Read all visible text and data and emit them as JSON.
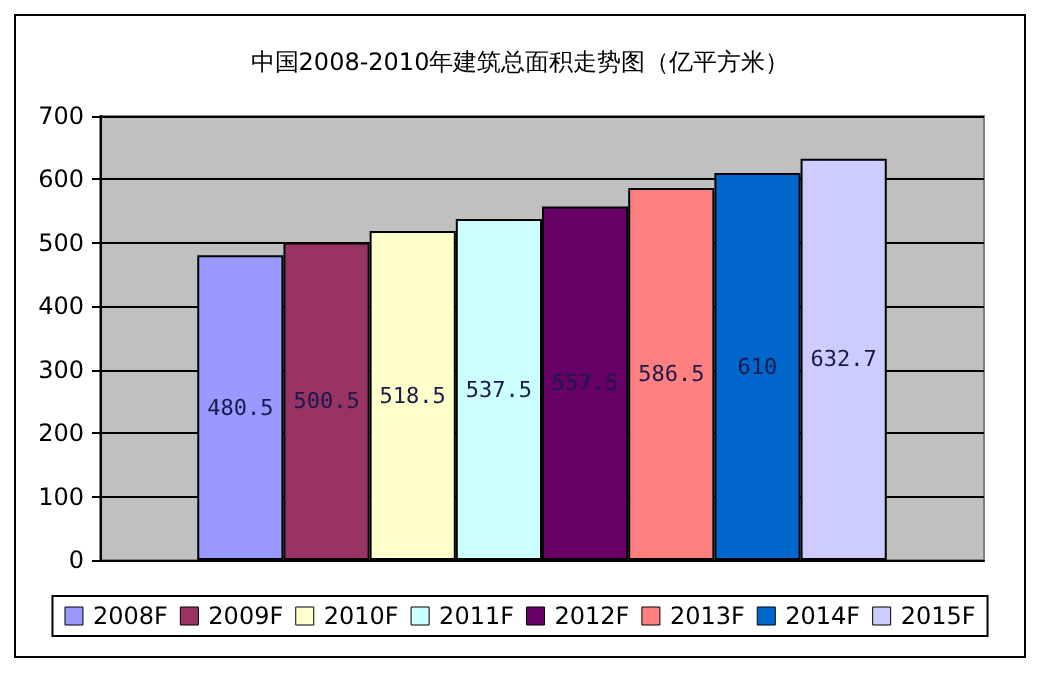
{
  "chart_data": {
    "type": "bar",
    "title": "中国2008-2010年建筑总面积走势图（亿平方米）",
    "categories": [
      null
    ],
    "series": [
      {
        "name": "2008F",
        "color": "#9999ff",
        "values": [
          480.5
        ]
      },
      {
        "name": "2009F",
        "color": "#993366",
        "values": [
          500.5
        ]
      },
      {
        "name": "2010F",
        "color": "#ffffcc",
        "values": [
          518.5
        ]
      },
      {
        "name": "2011F",
        "color": "#ccffff",
        "values": [
          537.5
        ]
      },
      {
        "name": "2012F",
        "color": "#660066",
        "values": [
          557.5
        ]
      },
      {
        "name": "2013F",
        "color": "#ff8080",
        "values": [
          586.5
        ]
      },
      {
        "name": "2014F",
        "color": "#0066cc",
        "values": [
          610
        ]
      },
      {
        "name": "2015F",
        "color": "#ccccff",
        "values": [
          632.7
        ]
      }
    ],
    "ylim": [
      0,
      700
    ],
    "yticks": [
      0,
      100,
      200,
      300,
      400,
      500,
      600,
      700
    ],
    "grid": "y",
    "legend": "bottom",
    "data_labels": true
  }
}
